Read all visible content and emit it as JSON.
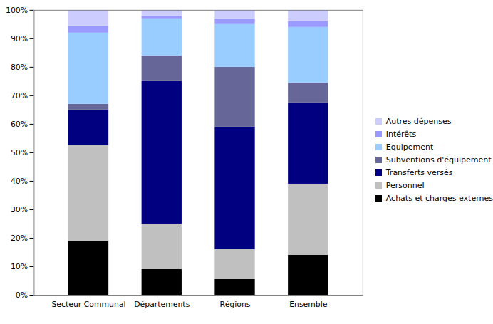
{
  "chart_data": {
    "type": "bar",
    "stacked": true,
    "grid": false,
    "legend": "right",
    "categories": [
      "Secteur Communal",
      "Départements",
      "Régions",
      "Ensemble"
    ],
    "series": [
      {
        "name": "Achats et charges externes",
        "color": "#000000",
        "values": [
          19,
          9,
          5.5,
          14
        ]
      },
      {
        "name": "Personnel",
        "color": "#c0c0c0",
        "values": [
          33.5,
          16,
          10.5,
          25
        ]
      },
      {
        "name": "Transferts versés",
        "color": "#000080",
        "values": [
          12.5,
          50,
          43,
          28.5
        ]
      },
      {
        "name": "Subventions d'équipement",
        "color": "#666699",
        "values": [
          2,
          9,
          21,
          7
        ]
      },
      {
        "name": "Equipement",
        "color": "#99ccff",
        "values": [
          25,
          13,
          15,
          19.5
        ]
      },
      {
        "name": "Intérêts",
        "color": "#9999ff",
        "values": [
          2.5,
          1,
          2,
          2
        ]
      },
      {
        "name": "Autres dépenses",
        "color": "#ccccff",
        "values": [
          5.5,
          2,
          3,
          4
        ]
      }
    ],
    "ylim": [
      0,
      100
    ],
    "yticks": [
      {
        "value": 0,
        "label": "0%"
      },
      {
        "value": 10,
        "label": "10%"
      },
      {
        "value": 20,
        "label": "20%"
      },
      {
        "value": 30,
        "label": "30%"
      },
      {
        "value": 40,
        "label": "40%"
      },
      {
        "value": 50,
        "label": "50%"
      },
      {
        "value": 60,
        "label": "60%"
      },
      {
        "value": 70,
        "label": "70%"
      },
      {
        "value": 80,
        "label": "80%"
      },
      {
        "value": 90,
        "label": "90%"
      },
      {
        "value": 100,
        "label": "100%"
      }
    ]
  }
}
